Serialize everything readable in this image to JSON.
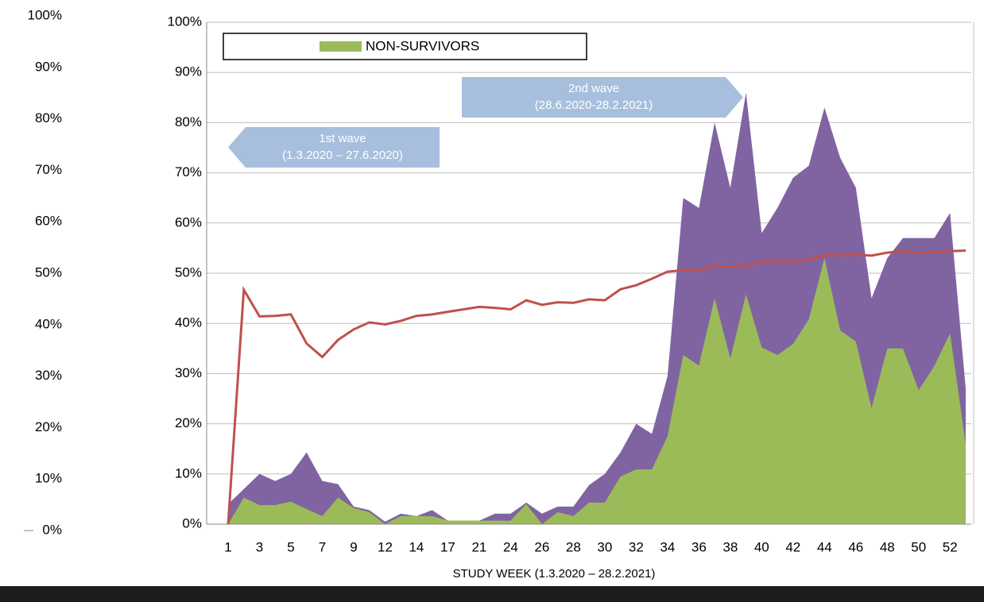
{
  "chart_data": {
    "type": "area",
    "x_label": "STUDY WEEK (1.3.2020 – 28.2.2021)",
    "categories": [
      "1",
      null,
      "3",
      null,
      "5",
      null,
      "7",
      null,
      "9",
      null,
      "12",
      null,
      "14",
      null,
      "17",
      null,
      "21",
      null,
      "24",
      null,
      "26",
      null,
      "28",
      null,
      "30",
      null,
      "32",
      null,
      "34",
      null,
      "36",
      null,
      "38",
      null,
      "40",
      null,
      "42",
      null,
      "44",
      null,
      "46",
      null,
      "48",
      null,
      "50",
      null,
      "52",
      null
    ],
    "series": [
      {
        "color": "#8064a2",
        "kind": "area",
        "values": [
          4,
          7,
          10,
          8.6,
          10,
          14.3,
          8.6,
          8,
          3.5,
          2.8,
          0.5,
          2.1,
          1.6,
          2.8,
          0.7,
          0.7,
          0.7,
          2.1,
          2.1,
          4.3,
          2.1,
          3.5,
          3.5,
          7.8,
          10,
          14.3,
          20,
          18,
          29.5,
          65,
          63,
          80,
          67,
          86,
          58,
          63,
          69,
          71.4,
          83,
          73,
          67,
          45,
          53,
          57,
          57,
          57,
          62,
          27
        ]
      },
      {
        "name": "NON-SURVIVORS",
        "color": "#9bbb59",
        "kind": "area",
        "values": [
          0,
          5.3,
          3.8,
          3.8,
          4.5,
          3,
          1.6,
          5.3,
          3.2,
          2.4,
          0,
          1.6,
          1.6,
          1.6,
          0.7,
          0.7,
          0.7,
          0.7,
          0.7,
          4,
          0,
          2.4,
          1.6,
          4.3,
          4.3,
          9.5,
          10.9,
          10.9,
          17.5,
          33.7,
          31.6,
          45,
          33,
          45.8,
          35.2,
          33.7,
          35.9,
          40.8,
          53,
          38.6,
          36.4,
          23.1,
          35,
          35,
          26.7,
          31.5,
          38,
          16
        ]
      },
      {
        "color": "#c0504d",
        "kind": "line",
        "values": [
          0,
          46.7,
          41.4,
          41.5,
          41.8,
          36,
          33.3,
          36.7,
          38.8,
          40.2,
          39.8,
          40.5,
          41.5,
          41.8,
          42.3,
          42.8,
          43.3,
          43.1,
          42.8,
          44.6,
          43.7,
          44.2,
          44.1,
          44.8,
          44.6,
          46.8,
          47.6,
          48.9,
          50.3,
          50.6,
          50.5,
          51.5,
          51.2,
          51.6,
          52.3,
          52.4,
          52.3,
          52.8,
          53.6,
          53.6,
          53.7,
          53.5,
          54.1,
          54.4,
          54.1,
          54.2,
          54.4,
          54.5
        ]
      }
    ],
    "ylim": [
      0,
      100
    ],
    "yticks": [
      {
        "value": 0,
        "label": "0%"
      },
      {
        "value": 10,
        "label": "10%"
      },
      {
        "value": 20,
        "label": "20%"
      },
      {
        "value": 30,
        "label": "30%"
      },
      {
        "value": 40,
        "label": "40%"
      },
      {
        "value": 50,
        "label": "50%"
      },
      {
        "value": 60,
        "label": "60%"
      },
      {
        "value": 70,
        "label": "70%"
      },
      {
        "value": 80,
        "label": "80%"
      },
      {
        "value": 90,
        "label": "90%"
      },
      {
        "value": 100,
        "label": "100%"
      }
    ],
    "y2lim": [
      0,
      100
    ],
    "y2ticks": [
      {
        "value": 0,
        "label": "0%"
      },
      {
        "value": 10,
        "label": "10%"
      },
      {
        "value": 20,
        "label": "20%"
      },
      {
        "value": 30,
        "label": "30%"
      },
      {
        "value": 40,
        "label": "40%"
      },
      {
        "value": 50,
        "label": "50%"
      },
      {
        "value": 60,
        "label": "60%"
      },
      {
        "value": 70,
        "label": "70%"
      },
      {
        "value": 80,
        "label": "80%"
      },
      {
        "value": 90,
        "label": "90%"
      },
      {
        "value": 100,
        "label": "100%"
      }
    ],
    "grid": true,
    "legend": "top",
    "annotations": [
      {
        "lines": [
          "1st wave",
          "(1.3.2020 – 27.6.2020)"
        ],
        "direction": "left"
      },
      {
        "lines": [
          "2nd wave",
          "(28.6.2020-28.2.2021)"
        ],
        "direction": "right"
      }
    ]
  }
}
